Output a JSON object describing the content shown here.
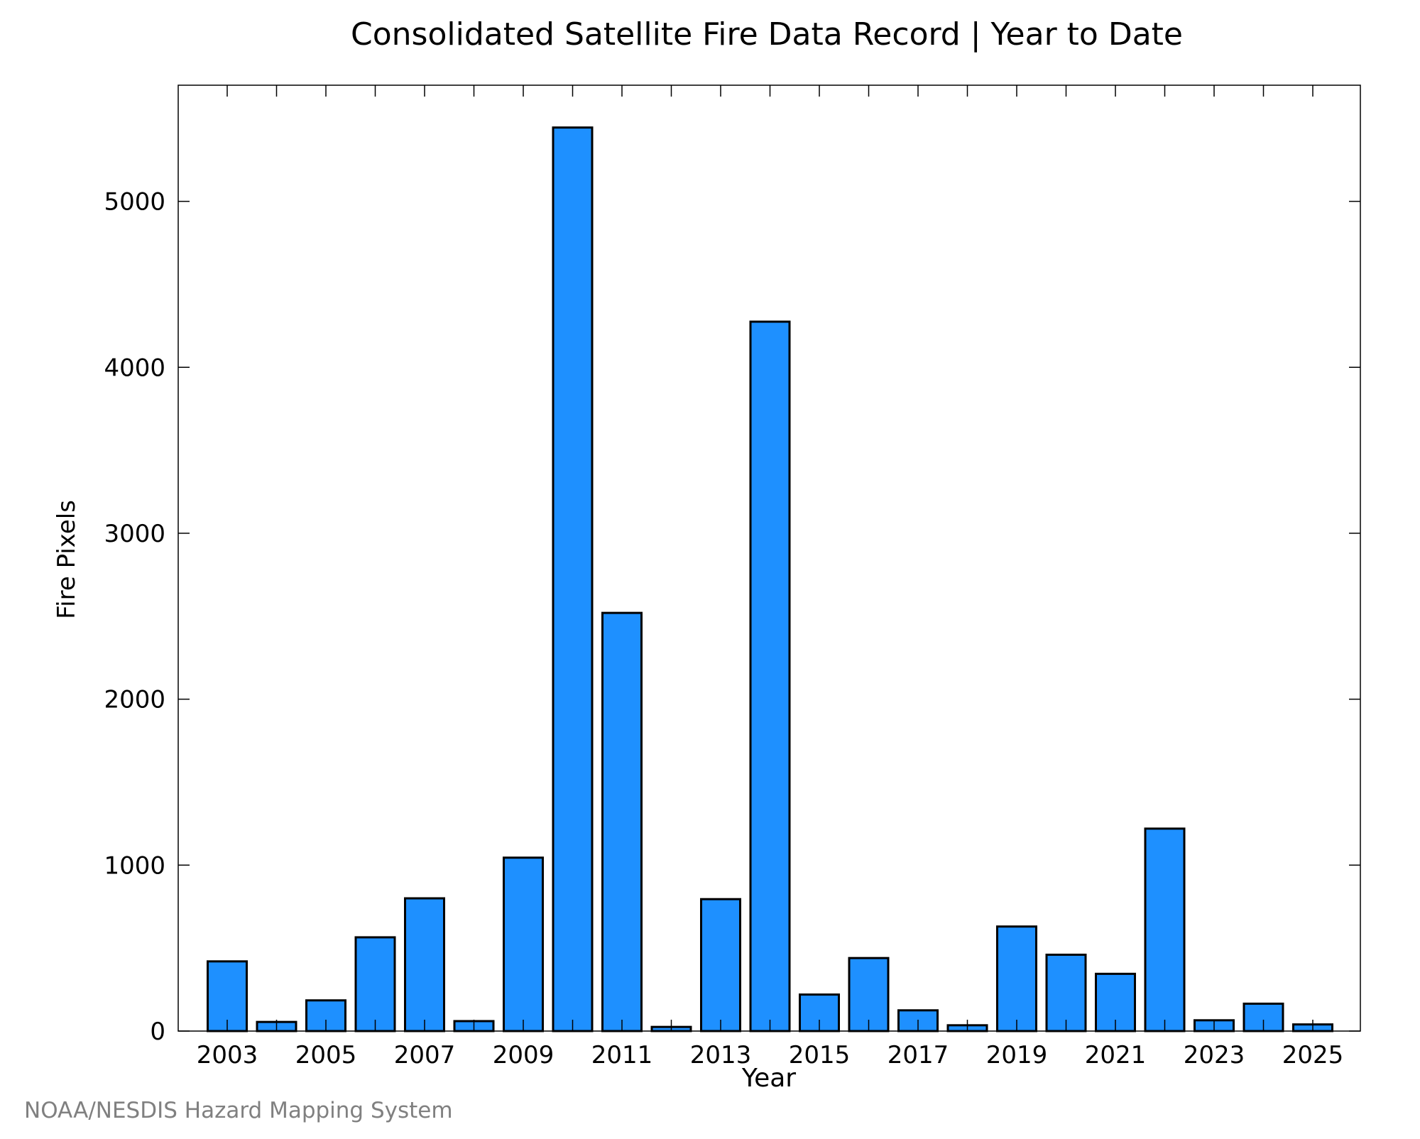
{
  "chart_data": {
    "type": "bar",
    "title": "Consolidated Satellite Fire Data Record | Year to Date",
    "xlabel": "Year",
    "ylabel": "Fire Pixels",
    "categories": [
      "2003",
      "2004",
      "2005",
      "2006",
      "2007",
      "2008",
      "2009",
      "2010",
      "2011",
      "2012",
      "2013",
      "2014",
      "2015",
      "2016",
      "2017",
      "2018",
      "2019",
      "2020",
      "2021",
      "2022",
      "2023",
      "2024",
      "2025"
    ],
    "values": [
      420,
      55,
      185,
      565,
      800,
      60,
      1045,
      5445,
      2520,
      25,
      795,
      4275,
      220,
      440,
      125,
      35,
      630,
      460,
      345,
      1220,
      65,
      165,
      40
    ],
    "xtick_labels": [
      "2003",
      "2005",
      "2007",
      "2009",
      "2011",
      "2013",
      "2015",
      "2017",
      "2019",
      "2021",
      "2023",
      "2025"
    ],
    "yticks": [
      0,
      1000,
      2000,
      3000,
      4000,
      5000
    ],
    "ylim": [
      0,
      5700
    ],
    "bar_color": "#1e90ff",
    "grid": false,
    "credit": "NOAA/NESDIS Hazard Mapping System"
  }
}
